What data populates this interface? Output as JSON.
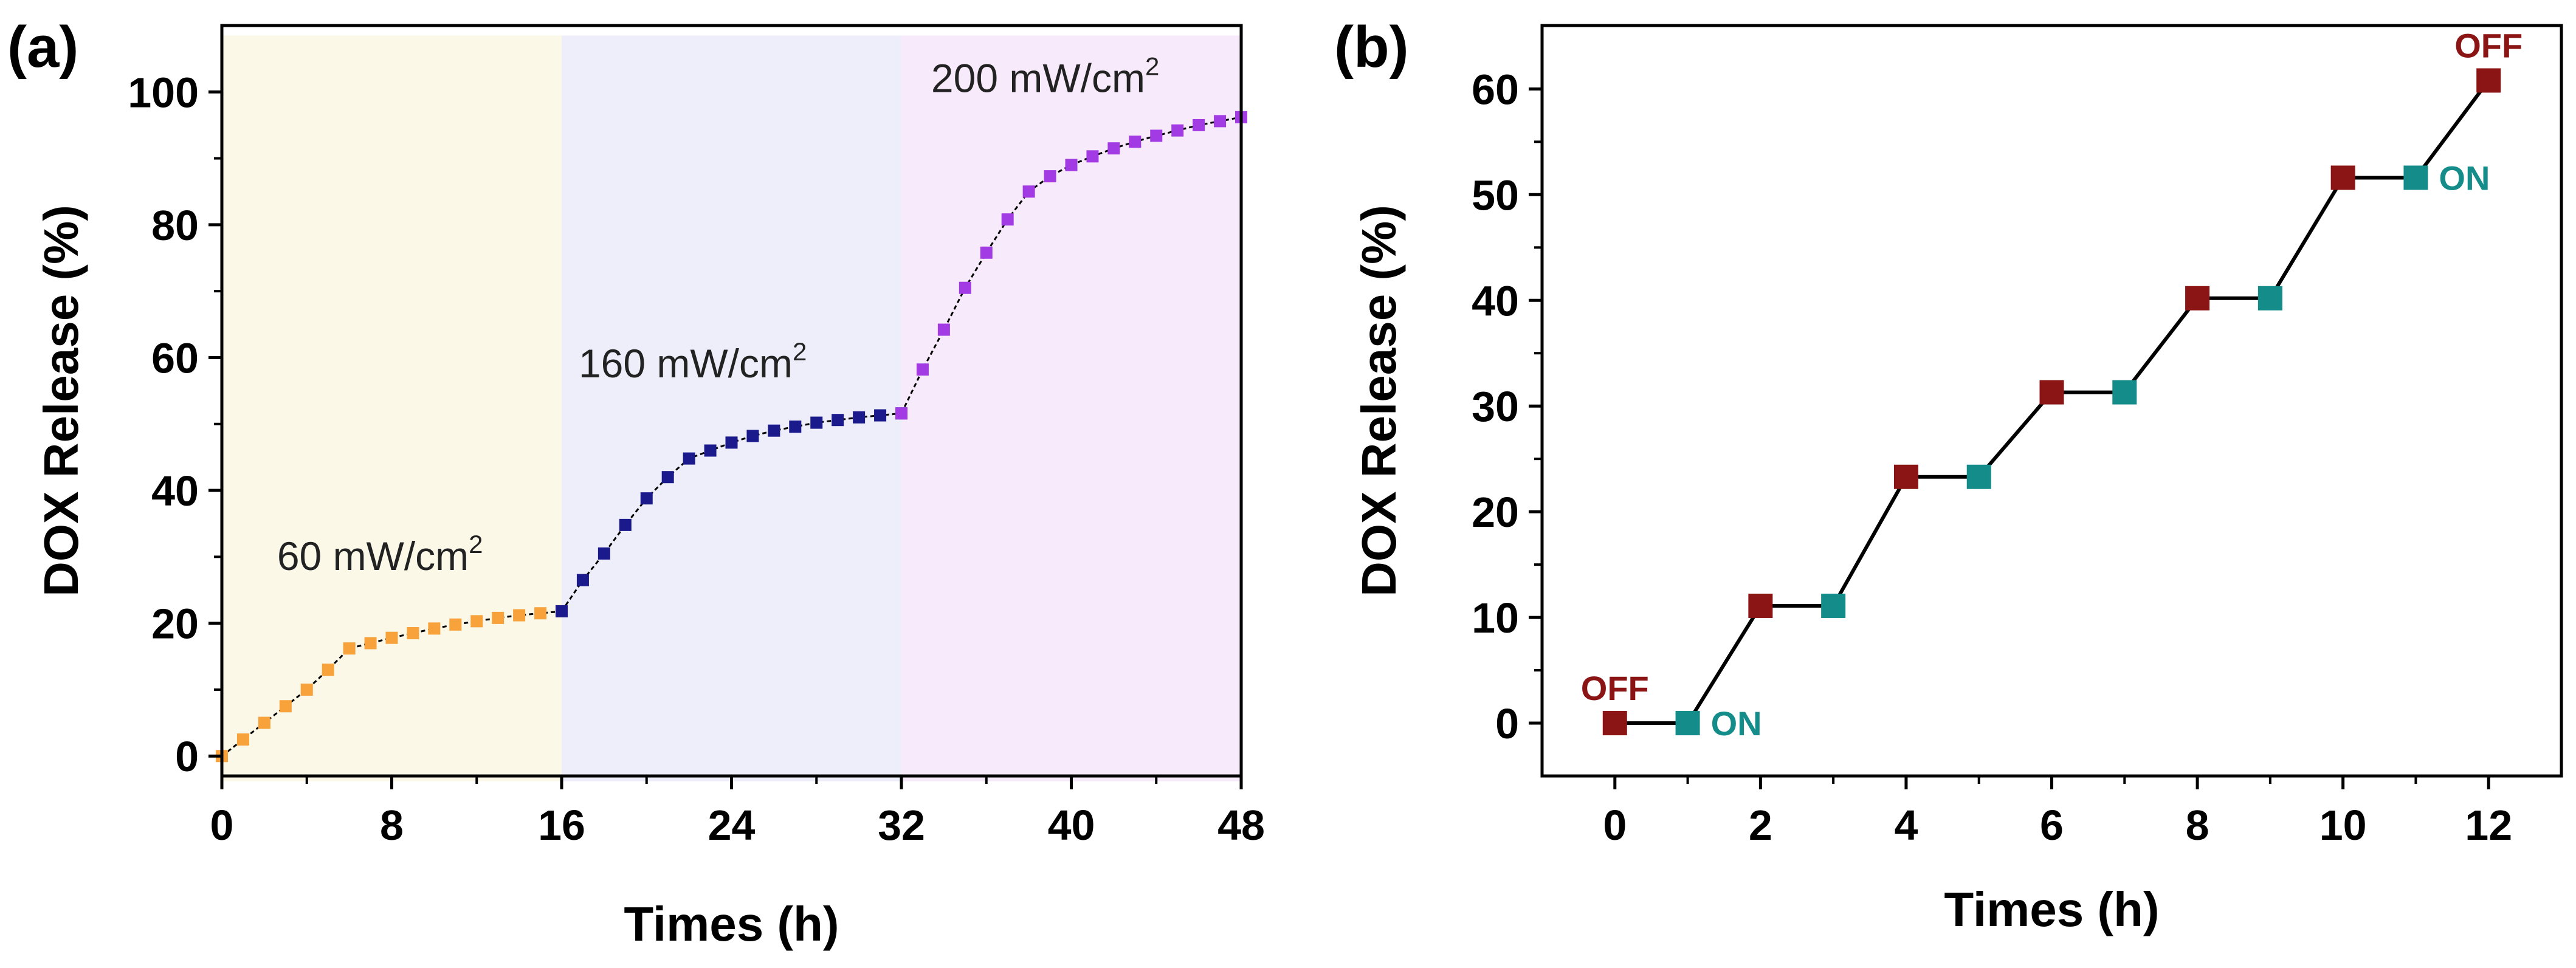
{
  "figure": {
    "panel_a_label": "(a)",
    "panel_b_label": "(b)"
  },
  "chart_data": [
    {
      "type": "line",
      "panel": "(a)",
      "title": "",
      "xlabel": "Times (h)",
      "ylabel": "DOX Release (%)",
      "xlim": [
        0,
        48
      ],
      "ylim": [
        -3,
        110
      ],
      "xticks": [
        0,
        8,
        16,
        24,
        32,
        40,
        48
      ],
      "xtick_labels": [
        "0",
        "8",
        "16",
        "24",
        "32",
        "40",
        "48"
      ],
      "yticks": [
        0,
        20,
        40,
        60,
        80,
        100
      ],
      "ytick_labels": [
        "0",
        "20",
        "40",
        "60",
        "80",
        "100"
      ],
      "grid": false,
      "regions": [
        {
          "x_start": 0,
          "x_end": 16,
          "color": "#fbf8e8",
          "label": "60 mW/cm",
          "superscript": "2",
          "label_x": 2.6,
          "label_y": 28
        },
        {
          "x_start": 16,
          "x_end": 32,
          "color": "#eeeefb",
          "label": "160 mW/cm",
          "superscript": "2",
          "label_x": 16.8,
          "label_y": 57
        },
        {
          "x_start": 32,
          "x_end": 48,
          "color": "#f7eafa",
          "label": "200 mW/cm",
          "superscript": "2",
          "label_x": 33.4,
          "label_y": 100
        }
      ],
      "series": [
        {
          "name": "60 mW/cm2",
          "color": "#f7a23a",
          "x": [
            0,
            1,
            2,
            3,
            4,
            5,
            6,
            7,
            8,
            9,
            10,
            11,
            12,
            13,
            14,
            15,
            16
          ],
          "values": [
            0,
            2.5,
            5.0,
            7.5,
            10.0,
            13.0,
            16.2,
            17.0,
            17.8,
            18.5,
            19.2,
            19.8,
            20.3,
            20.8,
            21.2,
            21.5,
            21.8
          ]
        },
        {
          "name": "160 mW/cm2",
          "color": "#1a1a8c",
          "x": [
            16,
            17,
            18,
            19,
            20,
            21,
            22,
            23,
            24,
            25,
            26,
            27,
            28,
            29,
            30,
            31,
            32
          ],
          "values": [
            21.8,
            26.5,
            30.5,
            34.8,
            38.8,
            42.0,
            44.8,
            46.0,
            47.2,
            48.2,
            49.0,
            49.6,
            50.2,
            50.6,
            51.0,
            51.3,
            51.6
          ]
        },
        {
          "name": "200 mW/cm2",
          "color": "#a23be3",
          "x": [
            32,
            33,
            34,
            35,
            36,
            37,
            38,
            39,
            40,
            41,
            42,
            43,
            44,
            45,
            46,
            47,
            48
          ],
          "values": [
            51.6,
            58.2,
            64.2,
            70.5,
            75.8,
            80.8,
            85.0,
            87.3,
            89.0,
            90.3,
            91.5,
            92.5,
            93.4,
            94.2,
            95.0,
            95.6,
            96.2
          ]
        }
      ]
    },
    {
      "type": "line",
      "panel": "(b)",
      "title": "",
      "xlabel": "Times (h)",
      "ylabel": "DOX Release (%)",
      "xlim": [
        -1,
        13
      ],
      "ylim": [
        -5,
        66
      ],
      "xticks": [
        0,
        2,
        4,
        6,
        8,
        10,
        12
      ],
      "xtick_labels": [
        "0",
        "2",
        "4",
        "6",
        "8",
        "10",
        "12"
      ],
      "yticks": [
        0,
        10,
        20,
        30,
        40,
        50,
        60
      ],
      "ytick_labels": [
        "0",
        "10",
        "20",
        "30",
        "40",
        "50",
        "60"
      ],
      "grid": false,
      "line_color": "#000000",
      "series": [
        {
          "name": "DOX release",
          "x": [
            0,
            1,
            2,
            3,
            4,
            5,
            6,
            7,
            8,
            9,
            10,
            11,
            12
          ],
          "values": [
            0,
            0,
            11.1,
            11.1,
            23.3,
            23.3,
            31.3,
            31.3,
            40.2,
            40.2,
            51.6,
            51.6,
            60.8
          ],
          "state": [
            "off",
            "on",
            "off",
            "on",
            "off",
            "on",
            "off",
            "on",
            "off",
            "on",
            "off",
            "on",
            "off"
          ]
        }
      ],
      "state_colors": {
        "off": "#8b1414",
        "on": "#148c8a"
      },
      "annotations": [
        {
          "text": "OFF",
          "x": 0,
          "y": 0,
          "position": "above",
          "color": "#8b1414"
        },
        {
          "text": "ON",
          "x": 1,
          "y": 0,
          "position": "right",
          "color": "#148c8a"
        },
        {
          "text": "ON",
          "x": 11,
          "y": 51.6,
          "position": "right",
          "color": "#148c8a"
        },
        {
          "text": "OFF",
          "x": 12,
          "y": 60.8,
          "position": "above",
          "color": "#8b1414"
        }
      ]
    }
  ]
}
